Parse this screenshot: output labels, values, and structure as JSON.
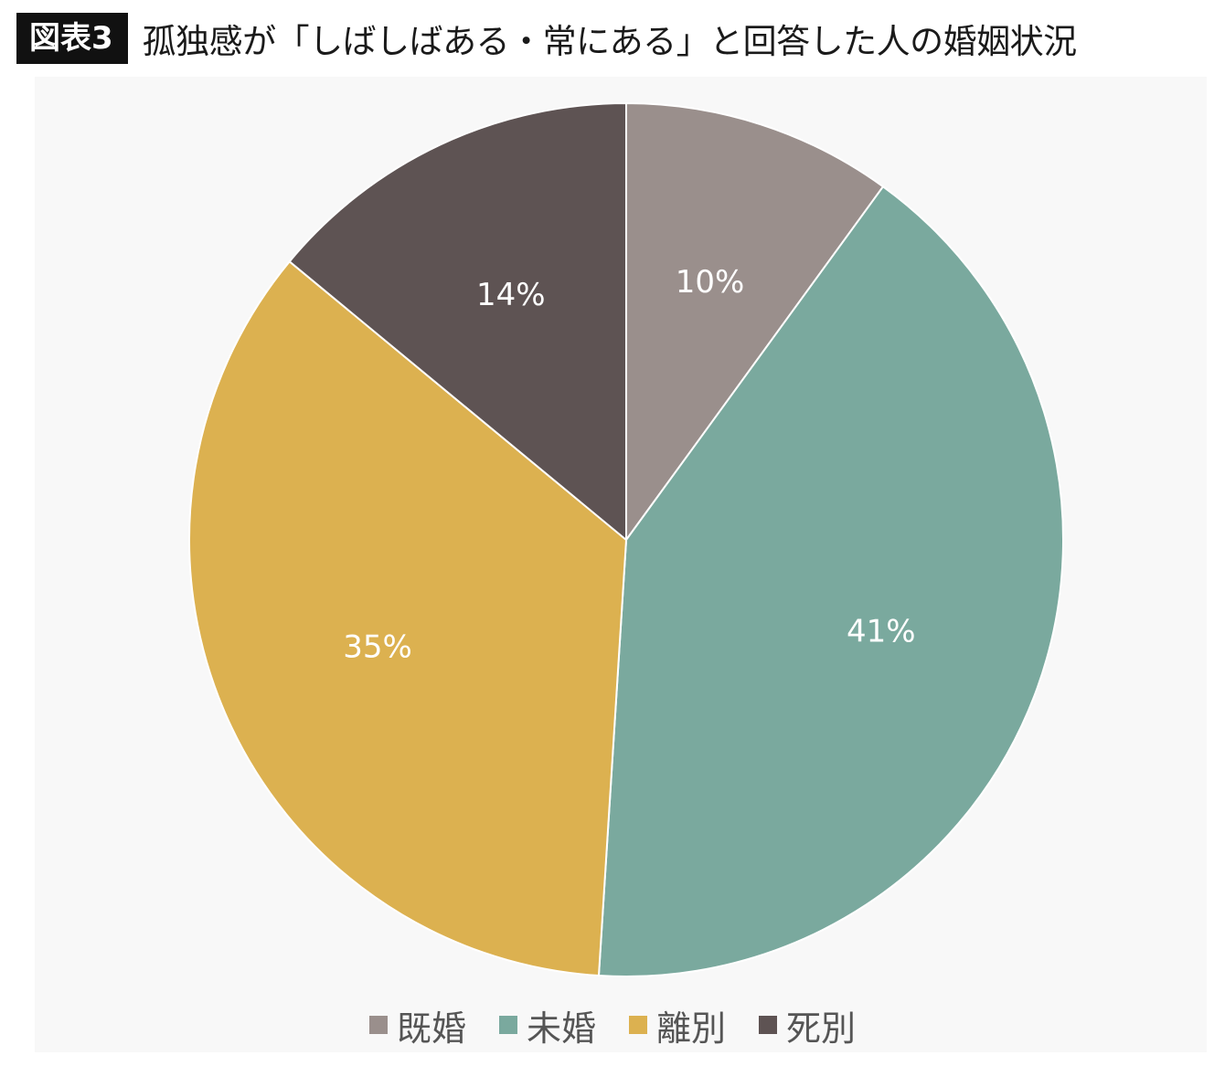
{
  "header": {
    "figure_label": "図表3",
    "title": "孤独感が「しばしばある・常にある」と回答した人の婚姻状況"
  },
  "chart_data": {
    "type": "pie",
    "title": "孤独感が「しばしばある・常にある」と回答した人の婚姻状況",
    "categories": [
      "既婚",
      "未婚",
      "離別",
      "死別"
    ],
    "values": [
      10,
      41,
      35,
      14
    ],
    "labels": [
      "10%",
      "41%",
      "35%",
      "14%"
    ],
    "unit": "%",
    "colors": [
      "#9a8f8c",
      "#7aa99e",
      "#dcb150",
      "#5e5353"
    ],
    "start_angle_deg": 0,
    "direction": "clockwise",
    "legend_position": "bottom"
  }
}
